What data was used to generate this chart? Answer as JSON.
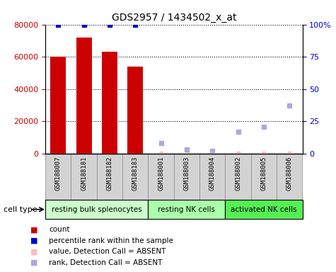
{
  "title": "GDS2957 / 1434502_x_at",
  "samples": [
    "GSM188007",
    "GSM188181",
    "GSM188182",
    "GSM188183",
    "GSM188001",
    "GSM188003",
    "GSM188004",
    "GSM188002",
    "GSM188005",
    "GSM188006"
  ],
  "bar_values": [
    60000,
    72000,
    63000,
    54000,
    null,
    null,
    null,
    null,
    null,
    null
  ],
  "bar_color": "#cc0000",
  "percentile_rank": [
    100,
    100,
    100,
    100,
    null,
    null,
    null,
    null,
    null,
    null
  ],
  "rank_absent": [
    null,
    null,
    null,
    null,
    8,
    3,
    2,
    17,
    21,
    37
  ],
  "value_absent_left": [
    null,
    null,
    null,
    null,
    600,
    300,
    700,
    400,
    500,
    400
  ],
  "ylim_left": [
    0,
    80000
  ],
  "ylim_right": [
    0,
    100
  ],
  "yticks_left": [
    0,
    20000,
    40000,
    60000,
    80000
  ],
  "yticks_right": [
    0,
    25,
    50,
    75,
    100
  ],
  "ytick_labels_right": [
    "0",
    "25",
    "50",
    "75",
    "100%"
  ],
  "cell_type_groups": [
    {
      "label": "resting bulk splenocytes",
      "start": 0,
      "end": 4,
      "color": "#ccffcc"
    },
    {
      "label": "resting NK cells",
      "start": 4,
      "end": 7,
      "color": "#aaffaa"
    },
    {
      "label": "activated NK cells",
      "start": 7,
      "end": 10,
      "color": "#55ee55"
    }
  ],
  "legend_items": [
    {
      "label": "count",
      "color": "#cc0000"
    },
    {
      "label": "percentile rank within the sample",
      "color": "#0000cc"
    },
    {
      "label": "value, Detection Call = ABSENT",
      "color": "#ffbbbb"
    },
    {
      "label": "rank, Detection Call = ABSENT",
      "color": "#aaaadd"
    }
  ],
  "cell_type_label": "cell type",
  "background_color": "#ffffff"
}
